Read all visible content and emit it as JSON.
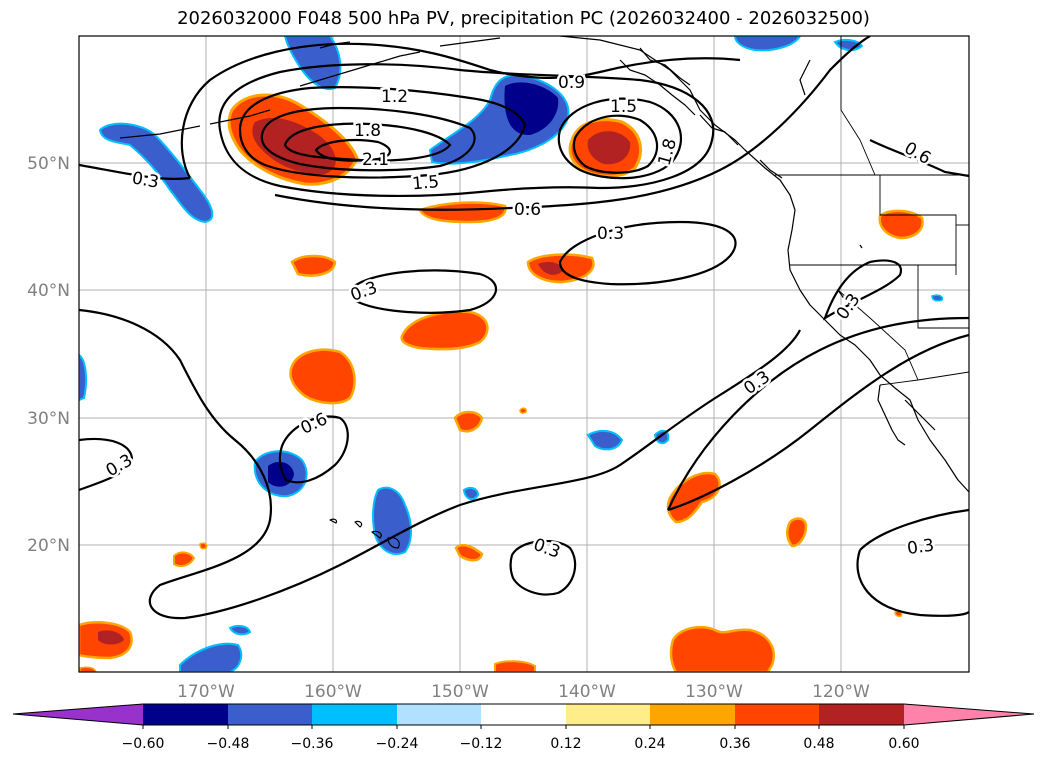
{
  "title": "2026032000 F048 500 hPa PV, precipitation PC (2026032400 - 2026032500)",
  "map": {
    "lat_labels": [
      "50°N",
      "40°N",
      "30°N",
      "20°N"
    ],
    "lon_labels": [
      "170°W",
      "160°W",
      "150°W",
      "140°W",
      "130°W",
      "120°W"
    ],
    "contour_labels": [
      "0.3",
      "1.2",
      "1.8",
      "2.1",
      "1.5",
      "0.9",
      "1.5",
      "1.8",
      "0.6",
      "0.3",
      "0.3",
      "0.3",
      "0.6",
      "0.3",
      "0.3",
      "0.3",
      "0.3",
      "0.6"
    ]
  },
  "colorbar": {
    "ticks": [
      "−0.60",
      "−0.48",
      "−0.36",
      "−0.24",
      "−0.12",
      "0.12",
      "0.24",
      "0.36",
      "0.48",
      "0.60"
    ],
    "colors": [
      "#9932CC",
      "#00008B",
      "#3A5FCD",
      "#00BFFF",
      "#B0E2FF",
      "#FFFFFF",
      "#FFEC8B",
      "#FFA500",
      "#FF4500",
      "#B22222",
      "#FF82AB"
    ]
  }
}
